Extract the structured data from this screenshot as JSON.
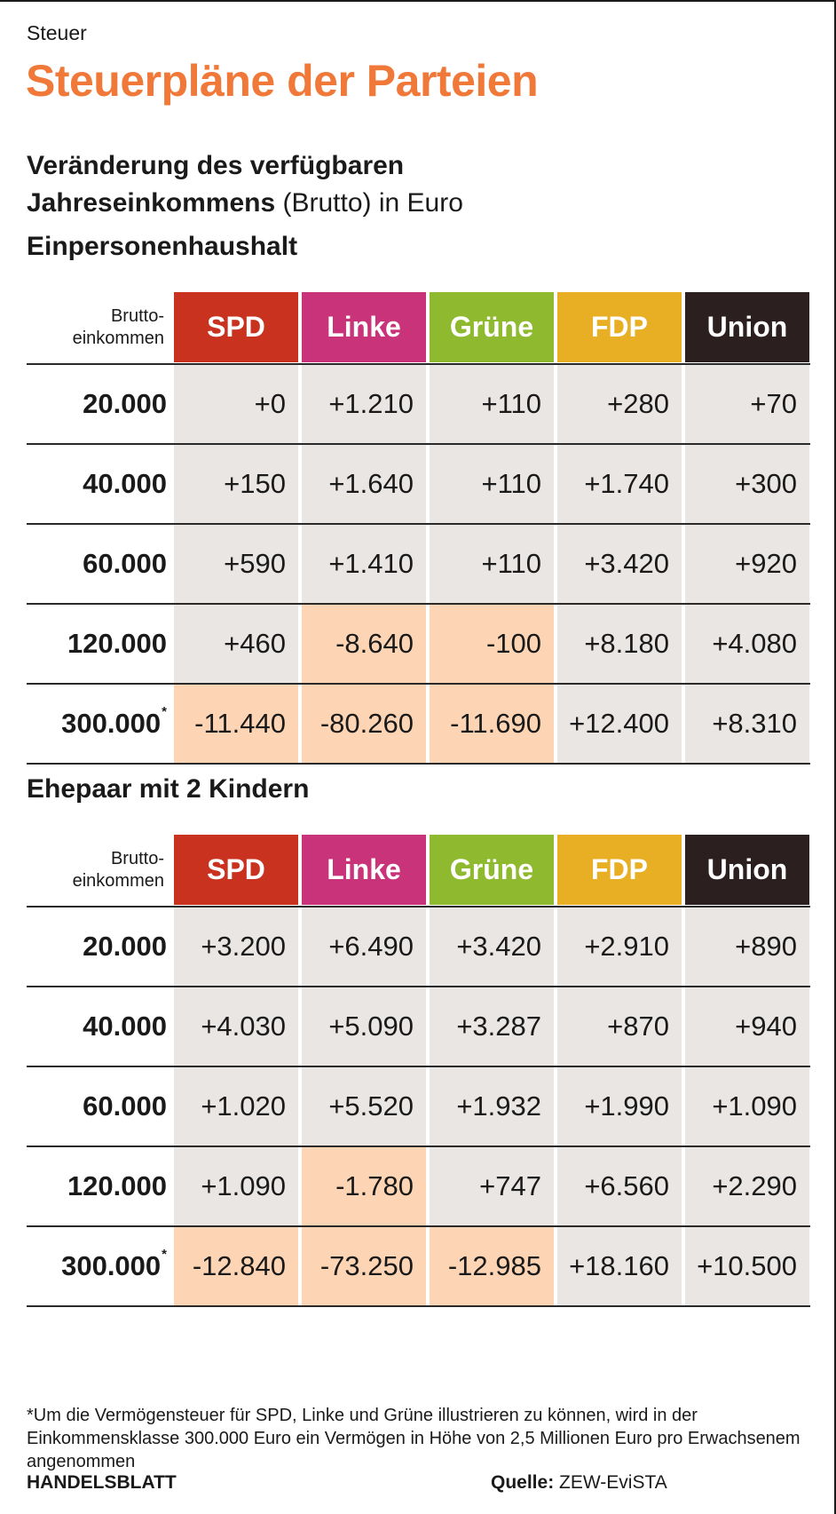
{
  "kicker": "Steuer",
  "title": "Steuerpläne der Parteien",
  "subtitle": {
    "bold_line1": "Veränderung des verfügbaren",
    "bold_line2": "Jahreseinkommens",
    "rest_line2": " (Brutto) in Euro"
  },
  "row_header": {
    "line1": "Brutto-",
    "line2": "einkommen"
  },
  "parties": [
    {
      "name": "SPD",
      "color": "#c8321f"
    },
    {
      "name": "Linke",
      "color": "#c9337a"
    },
    {
      "name": "Grüne",
      "color": "#8fba2f"
    },
    {
      "name": "FDP",
      "color": "#e8ae24"
    },
    {
      "name": "Union",
      "color": "#2b1f1f"
    }
  ],
  "chart_data": [
    {
      "type": "table",
      "title": "Einpersonenhaushalt",
      "categories": [
        "20.000",
        "40.000",
        "60.000",
        "120.000",
        "300.000"
      ],
      "footnote_marker_row": 4,
      "series": [
        {
          "name": "SPD",
          "values": [
            "+0",
            "+150",
            "+590",
            "+460",
            "-11.440"
          ]
        },
        {
          "name": "Linke",
          "values": [
            "+1.210",
            "+1.640",
            "+1.410",
            "-8.640",
            "-80.260"
          ]
        },
        {
          "name": "Grüne",
          "values": [
            "+110",
            "+110",
            "+110",
            "-100",
            "-11.690"
          ]
        },
        {
          "name": "FDP",
          "values": [
            "+280",
            "+1.740",
            "+3.420",
            "+8.180",
            "+12.400"
          ]
        },
        {
          "name": "Union",
          "values": [
            "+70",
            "+300",
            "+920",
            "+4.080",
            "+8.310"
          ]
        }
      ]
    },
    {
      "type": "table",
      "title": "Ehepaar mit 2 Kindern",
      "categories": [
        "20.000",
        "40.000",
        "60.000",
        "120.000",
        "300.000"
      ],
      "footnote_marker_row": 4,
      "series": [
        {
          "name": "SPD",
          "values": [
            "+3.200",
            "+4.030",
            "+1.020",
            "+1.090",
            "-12.840"
          ]
        },
        {
          "name": "Linke",
          "values": [
            "+6.490",
            "+5.090",
            "+5.520",
            "-1.780",
            "-73.250"
          ]
        },
        {
          "name": "Grüne",
          "values": [
            "+3.420",
            "+3.287",
            "+1.932",
            "+747",
            "-12.985"
          ]
        },
        {
          "name": "FDP",
          "values": [
            "+2.910",
            "+870",
            "+1.990",
            "+6.560",
            "+18.160"
          ]
        },
        {
          "name": "Union",
          "values": [
            "+890",
            "+940",
            "+1.090",
            "+2.290",
            "+10.500"
          ]
        }
      ]
    }
  ],
  "footnote_marker": "*",
  "footnote": "*Um die Vermögensteuer für SPD, Linke und Grüne illustrieren zu können, wird in der Einkommensklasse 300.000 Euro ein Vermögen in Höhe von 2,5 Millionen Euro pro Erwachsenem angenommen",
  "brand": "HANDELSBLATT",
  "source": {
    "label": "Quelle:",
    "text": " ZEW-EviSTA"
  },
  "colors": {
    "title": "#f07838",
    "negative_cell": "#fdd5b4",
    "positive_cell": "#e9e6e4"
  }
}
